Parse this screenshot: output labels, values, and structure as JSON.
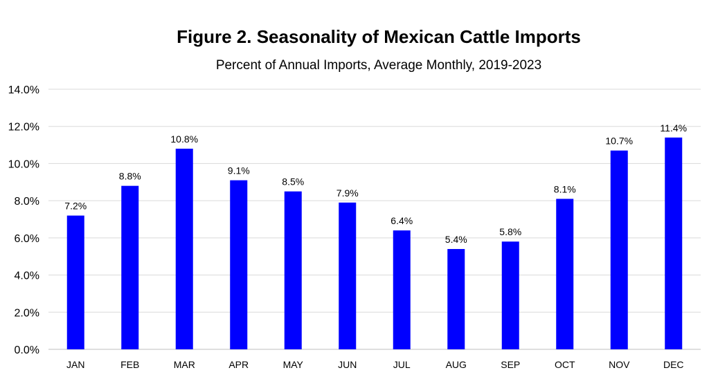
{
  "chart_data": {
    "type": "bar",
    "title": "Figure 2. Seasonality of Mexican Cattle Imports",
    "subtitle": "Percent of Annual Imports, Average Monthly, 2019-2023",
    "categories": [
      "JAN",
      "FEB",
      "MAR",
      "APR",
      "MAY",
      "JUN",
      "JUL",
      "AUG",
      "SEP",
      "OCT",
      "NOV",
      "DEC"
    ],
    "values": [
      7.2,
      8.8,
      10.8,
      9.1,
      8.5,
      7.9,
      6.4,
      5.4,
      5.8,
      8.1,
      10.7,
      11.4
    ],
    "data_labels": [
      "7.2%",
      "8.8%",
      "10.8%",
      "9.1%",
      "8.5%",
      "7.9%",
      "6.4%",
      "5.4%",
      "5.8%",
      "8.1%",
      "10.7%",
      "11.4%"
    ],
    "y_ticks": [
      0,
      2,
      4,
      6,
      8,
      10,
      12,
      14
    ],
    "y_tick_labels": [
      "0.0%",
      "2.0%",
      "4.0%",
      "6.0%",
      "8.0%",
      "10.0%",
      "12.0%",
      "14.0%"
    ],
    "ylim": [
      0,
      14
    ],
    "xlabel": "",
    "ylabel": "",
    "grid": true,
    "legend": "none",
    "bar_color": "#0000FF",
    "grid_color": "#D9D9D9"
  }
}
